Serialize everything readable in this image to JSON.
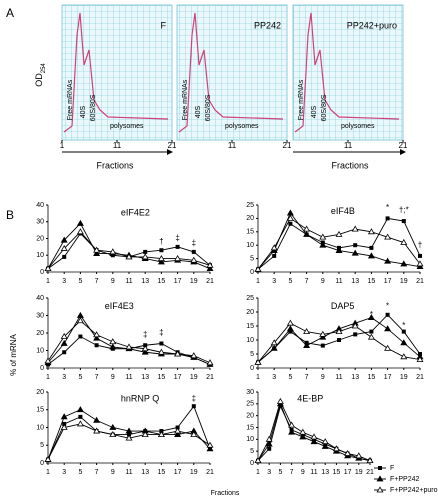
{
  "panel_a": {
    "label": "A",
    "y_label": {
      "text": "OD",
      "sub": "254"
    },
    "xlim": [
      1,
      21
    ],
    "profiles": [
      {
        "name": "F",
        "xticks": [
          1,
          11,
          21
        ],
        "labels": [
          "Free mRNAs",
          "40S",
          "60S/80S",
          "polysomes"
        ]
      },
      {
        "name": "PP242",
        "xticks": [
          11,
          21
        ],
        "labels": [
          "Free mRNAs",
          "40S",
          "60S/80S",
          "polysomes"
        ]
      },
      {
        "name": "PP242+puro",
        "xticks": [
          11,
          21
        ],
        "labels": [
          "Free mRNAs",
          "40S",
          "60S/80S",
          "polysomes"
        ]
      }
    ],
    "x_labels": [
      "Fractions",
      "Fractions"
    ]
  },
  "panel_b": {
    "label": "B",
    "y_label": "% of mRNA",
    "x_label": "Fractions",
    "legend": [
      "F",
      "F+PP242",
      "F+PP242+puro"
    ]
  },
  "chart_data": [
    {
      "type": "line",
      "title": "eIF4E2",
      "x": [
        1,
        3,
        5,
        7,
        9,
        11,
        13,
        15,
        17,
        19,
        21
      ],
      "xlim": [
        1,
        21
      ],
      "xticks": [
        1,
        3,
        5,
        7,
        9,
        11,
        13,
        15,
        17,
        19,
        21
      ],
      "ylim": [
        0,
        40
      ],
      "yticks": [
        0,
        10,
        20,
        30,
        40
      ],
      "series": [
        {
          "marker": "square",
          "color": "#000000",
          "values": [
            2,
            9,
            23,
            13,
            10,
            9,
            12,
            13,
            15,
            12,
            4
          ]
        },
        {
          "marker": "triangle",
          "color": "#000000",
          "values": [
            2,
            19,
            29,
            11,
            11,
            10,
            8,
            6,
            7,
            6,
            2
          ]
        },
        {
          "marker": "open-triangle",
          "color": "#000000",
          "values": [
            2,
            14,
            24,
            13,
            12,
            9,
            9,
            8,
            8,
            7,
            4
          ]
        }
      ],
      "annotations": [
        {
          "text": "†",
          "x": 15,
          "y": 18
        },
        {
          "text": "‡",
          "x": 17,
          "y": 20
        },
        {
          "text": "‡",
          "x": 19,
          "y": 17
        }
      ]
    },
    {
      "type": "line",
      "title": "eIF4B",
      "x": [
        1,
        3,
        5,
        7,
        9,
        11,
        13,
        15,
        17,
        19,
        21
      ],
      "xlim": [
        1,
        21
      ],
      "xticks": [
        1,
        3,
        5,
        7,
        9,
        11,
        13,
        15,
        17,
        19,
        21
      ],
      "ylim": [
        0,
        25
      ],
      "yticks": [
        0,
        5,
        10,
        15,
        20,
        25
      ],
      "series": [
        {
          "marker": "square",
          "color": "#000000",
          "values": [
            1,
            6,
            18,
            14,
            11,
            9,
            10,
            9,
            20,
            19,
            6
          ]
        },
        {
          "marker": "triangle",
          "color": "#000000",
          "values": [
            1,
            8,
            22,
            14,
            10,
            8,
            7,
            6,
            4,
            3,
            2
          ]
        },
        {
          "marker": "open-triangle",
          "color": "#000000",
          "values": [
            1,
            9,
            20,
            16,
            13,
            14,
            16,
            15,
            13,
            11,
            3
          ]
        }
      ],
      "annotations": [
        {
          "text": "*",
          "x": 17,
          "y": 24
        },
        {
          "text": "†;*",
          "x": 19,
          "y": 23
        },
        {
          "text": "†",
          "x": 21,
          "y": 10
        }
      ]
    },
    {
      "type": "line",
      "title": "eIF4E3",
      "x": [
        1,
        3,
        5,
        7,
        9,
        11,
        13,
        15,
        17,
        19,
        21
      ],
      "xlim": [
        1,
        21
      ],
      "xticks": [
        1,
        3,
        5,
        7,
        9,
        11,
        13,
        15,
        17,
        19,
        21
      ],
      "ylim": [
        0,
        40
      ],
      "yticks": [
        0,
        10,
        20,
        30,
        40
      ],
      "series": [
        {
          "marker": "square",
          "color": "#000000",
          "values": [
            2,
            9,
            18,
            13,
            11,
            11,
            13,
            14,
            9,
            6,
            2
          ]
        },
        {
          "marker": "triangle",
          "color": "#000000",
          "values": [
            3,
            14,
            30,
            17,
            12,
            11,
            9,
            8,
            8,
            6,
            2
          ]
        },
        {
          "marker": "open-triangle",
          "color": "#000000",
          "values": [
            4,
            18,
            27,
            19,
            15,
            12,
            11,
            9,
            8,
            7,
            3
          ]
        }
      ],
      "annotations": [
        {
          "text": "‡",
          "x": 13,
          "y": 19
        },
        {
          "text": "‡",
          "x": 15,
          "y": 20
        }
      ]
    },
    {
      "type": "line",
      "title": "DAP5",
      "x": [
        1,
        3,
        5,
        7,
        9,
        11,
        13,
        15,
        17,
        19,
        21
      ],
      "xlim": [
        1,
        21
      ],
      "xticks": [
        1,
        3,
        5,
        7,
        9,
        11,
        13,
        15,
        17,
        19,
        21
      ],
      "ylim": [
        0,
        25
      ],
      "yticks": [
        0,
        5,
        10,
        15,
        20,
        25
      ],
      "series": [
        {
          "marker": "square",
          "color": "#000000",
          "values": [
            2,
            7,
            13,
            9,
            8,
            10,
            12,
            13,
            19,
            13,
            5
          ]
        },
        {
          "marker": "triangle",
          "color": "#000000",
          "values": [
            2,
            7,
            14,
            8,
            11,
            14,
            16,
            18,
            14,
            9,
            4
          ]
        },
        {
          "marker": "open-triangle",
          "color": "#000000",
          "values": [
            2,
            9,
            16,
            13,
            12,
            13,
            15,
            11,
            7,
            4,
            3
          ]
        }
      ],
      "annotations": [
        {
          "text": "*",
          "x": 15,
          "y": 19
        },
        {
          "text": "*",
          "x": 17,
          "y": 22
        },
        {
          "text": "*",
          "x": 19,
          "y": 15
        }
      ]
    },
    {
      "type": "line",
      "title": "hnRNP Q",
      "x": [
        1,
        3,
        5,
        7,
        9,
        11,
        13,
        15,
        17,
        19,
        21
      ],
      "xlim": [
        1,
        21
      ],
      "xticks": [
        1,
        3,
        5,
        7,
        9,
        11,
        13,
        15,
        17,
        19,
        21
      ],
      "ylim": [
        0,
        20
      ],
      "yticks": [
        0,
        5,
        10,
        15,
        20
      ],
      "series": [
        {
          "marker": "square",
          "color": "#000000",
          "values": [
            1,
            11,
            13,
            9,
            8,
            8,
            9,
            9,
            10,
            16,
            4
          ]
        },
        {
          "marker": "triangle",
          "color": "#000000",
          "values": [
            1,
            13,
            15,
            12,
            10,
            9,
            9,
            8,
            8,
            9,
            4
          ]
        },
        {
          "marker": "open-triangle",
          "color": "#000000",
          "values": [
            1,
            10,
            11,
            9,
            8,
            7,
            8,
            8,
            9,
            8,
            5
          ]
        }
      ],
      "annotations": [
        {
          "text": "‡",
          "x": 19,
          "y": 18
        }
      ]
    },
    {
      "type": "line",
      "title": "4E-BP",
      "x": [
        1,
        3,
        5,
        7,
        9,
        11,
        13,
        15,
        17,
        19,
        21
      ],
      "xlim": [
        1,
        21
      ],
      "xticks": [
        1,
        3,
        5,
        7,
        9,
        11,
        13,
        15,
        17,
        19,
        21
      ],
      "ylim": [
        0,
        30
      ],
      "yticks": [
        0,
        5,
        10,
        15,
        20,
        25,
        30
      ],
      "series": [
        {
          "marker": "square",
          "color": "#000000",
          "values": [
            1,
            6,
            24,
            14,
            12,
            10,
            8,
            6,
            4,
            2,
            1
          ]
        },
        {
          "marker": "triangle",
          "color": "#000000",
          "values": [
            1,
            8,
            25,
            13,
            11,
            9,
            7,
            5,
            3,
            2,
            1
          ]
        },
        {
          "marker": "open-triangle",
          "color": "#000000",
          "values": [
            1,
            10,
            26,
            16,
            13,
            11,
            9,
            6,
            4,
            3,
            1
          ]
        }
      ],
      "annotations": []
    }
  ]
}
